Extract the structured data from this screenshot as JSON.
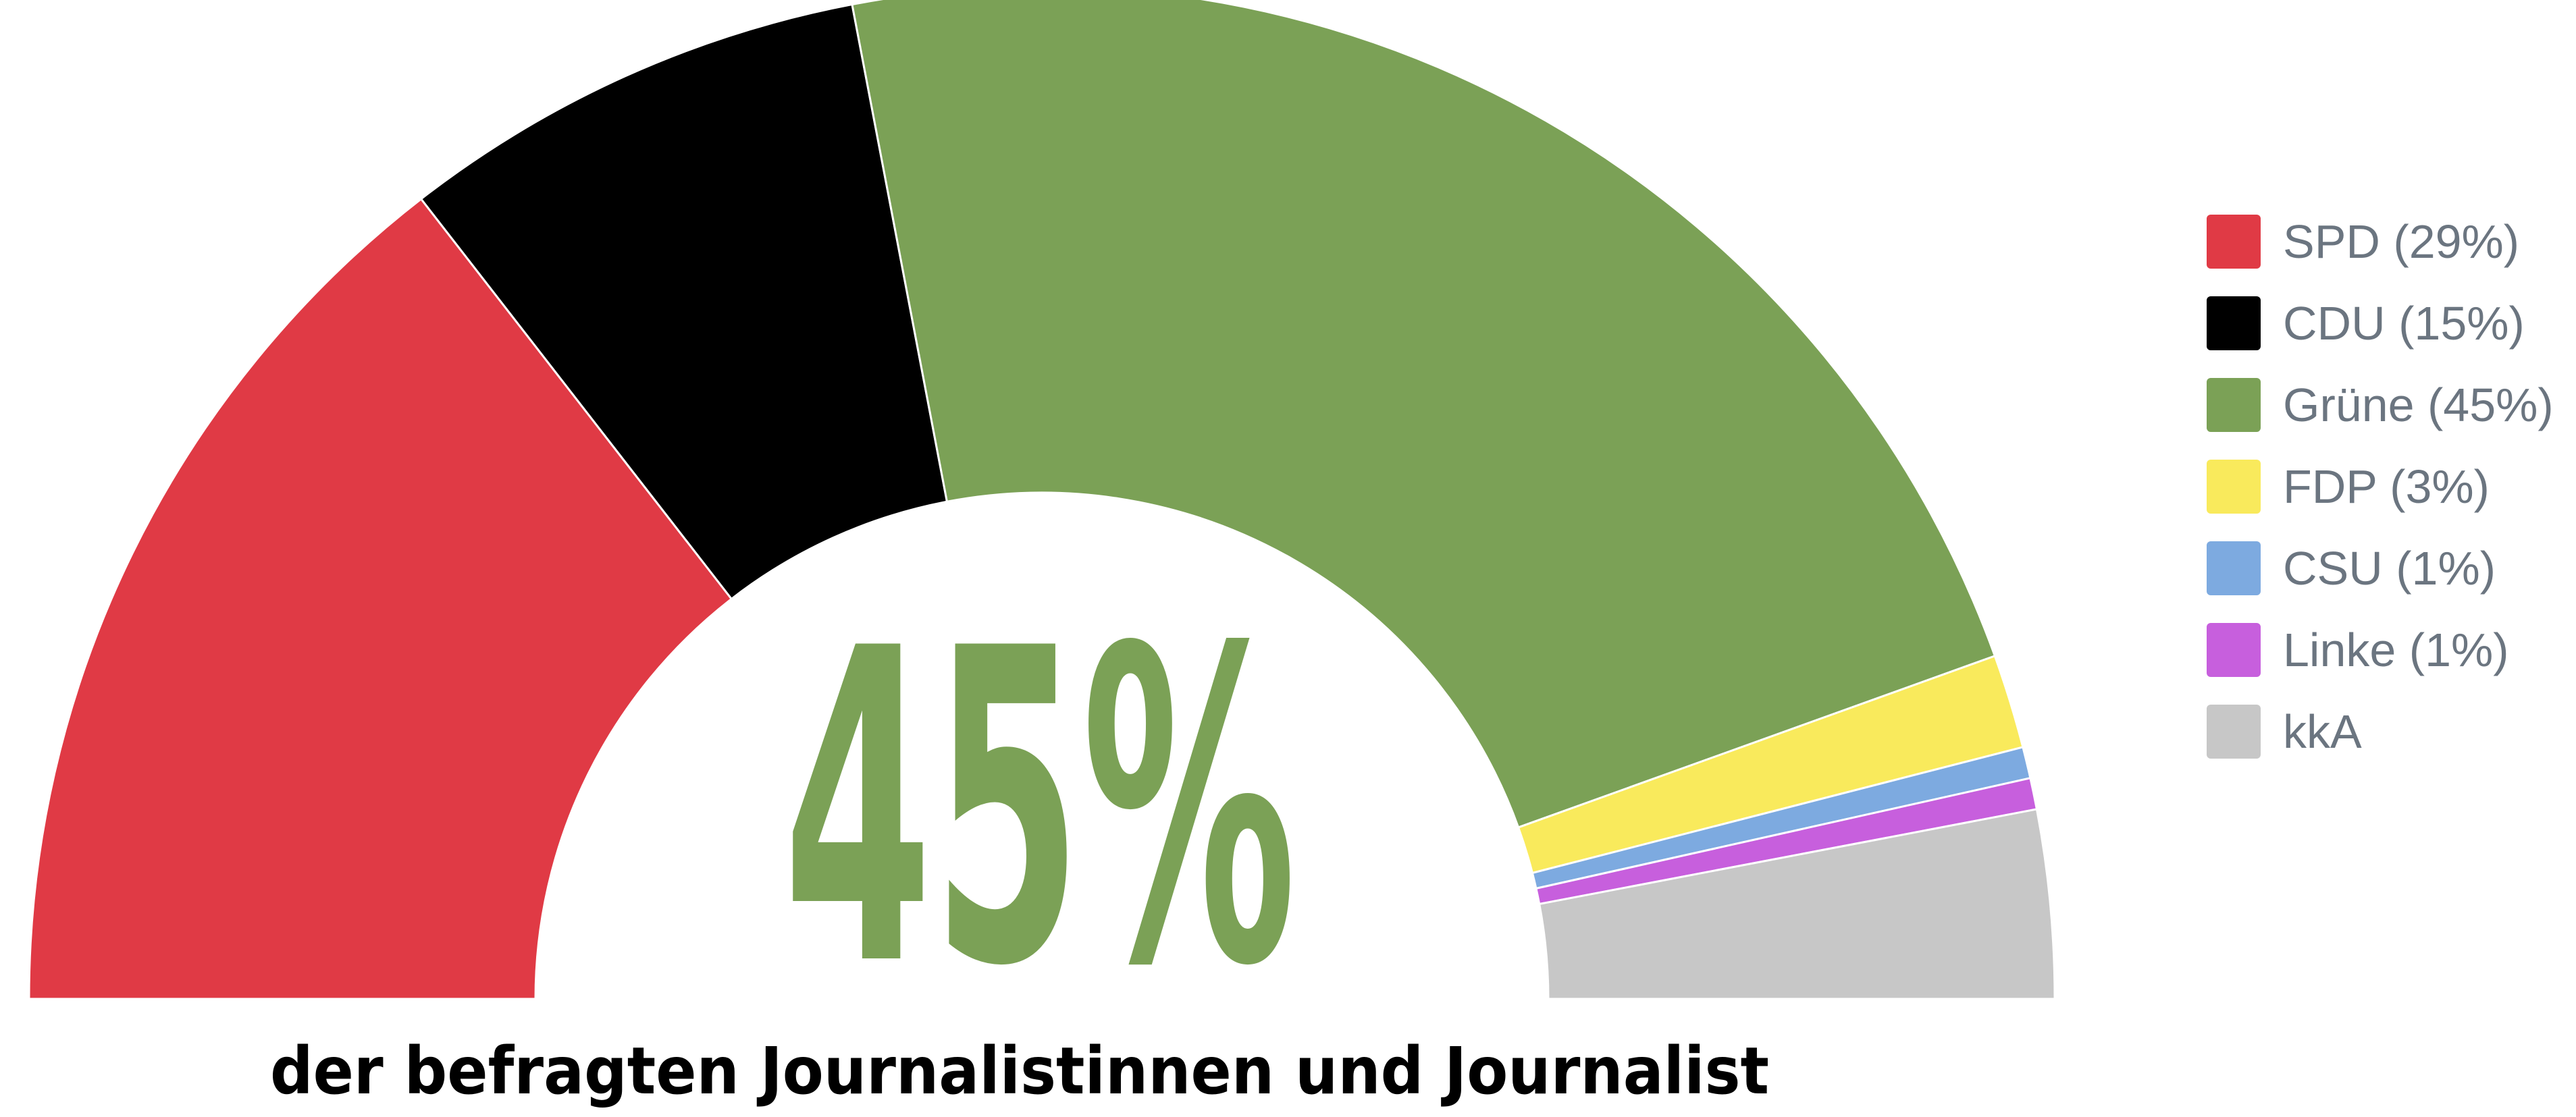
{
  "chart_data": {
    "type": "pie",
    "variant": "semicircle-donut",
    "highlight_value": "45%",
    "caption": "der befragten Journalistinnen und Journalist",
    "legend_position": "right",
    "slices": [
      {
        "name": "SPD",
        "value": 29,
        "label": "SPD (29%)",
        "color": "#e03a45"
      },
      {
        "name": "CDU",
        "value": 15,
        "label": "CDU (15%)",
        "color": "#000000"
      },
      {
        "name": "Grüne",
        "value": 45,
        "label": "Grüne (45%)",
        "color": "#7ba156"
      },
      {
        "name": "FDP",
        "value": 3,
        "label": "FDP (3%)",
        "color": "#f9ea5c"
      },
      {
        "name": "CSU",
        "value": 1,
        "label": "CSU (1%)",
        "color": "#7daae0"
      },
      {
        "name": "Linke",
        "value": 1,
        "label": "Linke (1%)",
        "color": "#c75fdd"
      },
      {
        "name": "kkA",
        "value": 6,
        "label": "kkA",
        "color": "#c7c7c7"
      }
    ]
  }
}
